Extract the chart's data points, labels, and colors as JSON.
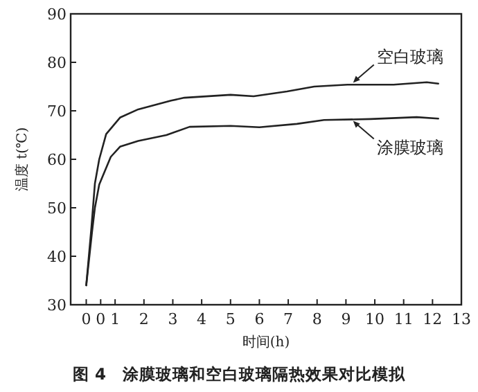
{
  "chart_data": {
    "type": "line",
    "xlabel": "时间(h)",
    "ylabel": "温度 t(℃)",
    "xlim": [
      -0.54,
      13
    ],
    "ylim": [
      30,
      90
    ],
    "xticks": [
      0,
      {
        "value": 0.5,
        "label": "0"
      },
      1,
      2,
      3,
      4,
      5,
      6,
      7,
      8,
      9,
      10,
      11,
      12,
      13
    ],
    "yticks": [
      30,
      40,
      50,
      60,
      70,
      80,
      90
    ],
    "line_style": "solid",
    "series": [
      {
        "color": "#222222",
        "x": [
          0,
          0.18,
          0.3,
          0.45,
          0.69,
          1.17,
          1.8,
          2.94,
          3.4,
          5.0,
          5.8,
          6.96,
          7.9,
          9.05,
          10.65,
          11.8,
          12.2
        ],
        "values": [
          34,
          46,
          55,
          60,
          65.2,
          68.6,
          70.3,
          72.1,
          72.7,
          73.3,
          73.0,
          74.0,
          75.0,
          75.4,
          75.4,
          75.9,
          75.6
        ]
      },
      {
        "color": "#222222",
        "x": [
          0,
          0.2,
          0.3,
          0.45,
          0.85,
          1.17,
          1.8,
          2.78,
          3.58,
          5.0,
          6.0,
          7.3,
          8.24,
          9.85,
          11.45,
          12.2
        ],
        "values": [
          34,
          45,
          50,
          54.8,
          60.5,
          62.6,
          63.8,
          65.0,
          66.7,
          66.9,
          66.6,
          67.3,
          68.1,
          68.3,
          68.7,
          68.4
        ]
      }
    ],
    "annotations": [
      {
        "text": "空白玻璃",
        "x": 9.2,
        "y": 75.5
      },
      {
        "text": "涂膜玻璃",
        "x": 9.2,
        "y": 68.2
      },
      "图 4　涂膜玻璃和空白玻璃隔热效果对比模拟"
    ]
  }
}
